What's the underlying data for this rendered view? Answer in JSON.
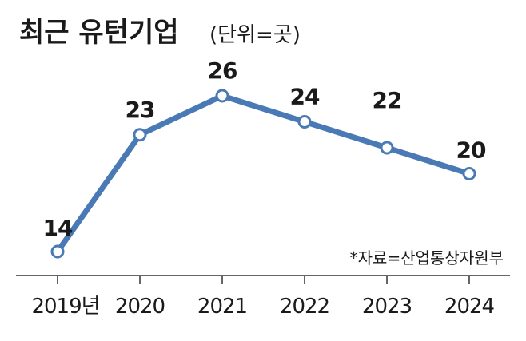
{
  "chart_data": {
    "type": "line",
    "title": "최근 유턴기업",
    "unit_note": "(단위=곳)",
    "source": "*자료=산업통상자원부",
    "categories": [
      "2019년",
      "2020",
      "2021",
      "2022",
      "2023",
      "2024"
    ],
    "series": [
      {
        "values": [
          14,
          23,
          26,
          24,
          22,
          20
        ]
      }
    ],
    "ylim": [
      14,
      26
    ],
    "grid": false,
    "colors": {
      "line": "#4a7ab5",
      "marker_fill": "#ffffff",
      "axis": "#333333"
    }
  }
}
